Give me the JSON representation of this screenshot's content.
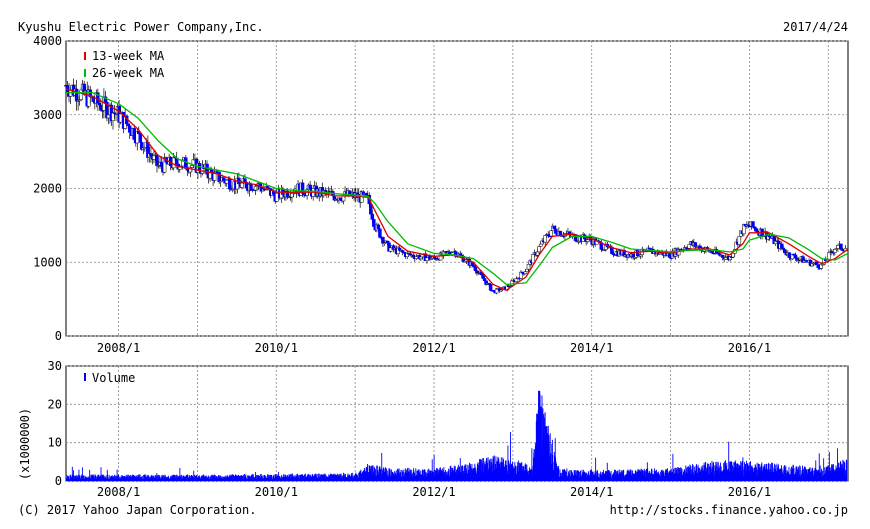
{
  "header": {
    "company": "Kyushu Electric Power Company,Inc.",
    "date": "2017/4/24"
  },
  "footer": {
    "copyright": "(C) 2017 Yahoo Japan Corporation.",
    "url": "http://stocks.finance.yahoo.co.jp"
  },
  "colors": {
    "candle": "#0000ff",
    "ma13": "#dd0000",
    "ma26": "#00bb00",
    "volume": "#0000ff",
    "grid": "#888888"
  },
  "chart_data": [
    {
      "type": "candlestick",
      "title": "Kyushu Electric Power Company,Inc.",
      "x_range": [
        "2007/5",
        "2017/4"
      ],
      "ylim": [
        0,
        4000
      ],
      "y_ticks": [
        "0",
        "1000",
        "2000",
        "3000",
        "4000"
      ],
      "x_ticks": [
        "2008/1",
        "2010/1",
        "2012/1",
        "2014/1",
        "2016/1"
      ],
      "grid": true,
      "legend": {
        "placement": "top-left",
        "entries": [
          "13-week MA",
          "26-week MA"
        ]
      },
      "price_trend": {
        "x": [
          "2007/5",
          "2007/9",
          "2008/1",
          "2008/4",
          "2008/7",
          "2008/10",
          "2009/1",
          "2009/4",
          "2009/7",
          "2009/10",
          "2010/1",
          "2010/4",
          "2010/7",
          "2010/10",
          "2011/1",
          "2011/3",
          "2011/4",
          "2011/6",
          "2011/9",
          "2012/1",
          "2012/4",
          "2012/7",
          "2012/10",
          "2012/12",
          "2013/3",
          "2013/5",
          "2013/7",
          "2013/10",
          "2014/1",
          "2014/4",
          "2014/7",
          "2014/10",
          "2015/1",
          "2015/4",
          "2015/7",
          "2015/10",
          "2015/12",
          "2016/1",
          "2016/4",
          "2016/7",
          "2016/10",
          "2016/12",
          "2017/2",
          "2017/4"
        ],
        "close": [
          3400,
          3200,
          3000,
          2700,
          2300,
          2350,
          2300,
          2150,
          2050,
          2050,
          1900,
          2000,
          1950,
          1900,
          1900,
          1850,
          1500,
          1200,
          1100,
          1050,
          1150,
          950,
          600,
          650,
          900,
          1200,
          1450,
          1350,
          1300,
          1150,
          1100,
          1150,
          1100,
          1250,
          1150,
          1050,
          1450,
          1500,
          1350,
          1100,
          1000,
          950,
          1200,
          1200
        ]
      },
      "series": [
        {
          "name": "13-week MA",
          "y": [
            3350,
            3250,
            3050,
            2800,
            2450,
            2300,
            2250,
            2200,
            2100,
            2050,
            1950,
            1950,
            1950,
            1900,
            1900,
            1880,
            1700,
            1350,
            1150,
            1080,
            1100,
            1000,
            700,
            620,
            800,
            1100,
            1350,
            1380,
            1320,
            1200,
            1130,
            1150,
            1120,
            1180,
            1180,
            1100,
            1250,
            1400,
            1400,
            1250,
            1080,
            980,
            1050,
            1180
          ]
        },
        {
          "name": "26-week MA",
          "y": [
            3300,
            3300,
            3150,
            2950,
            2650,
            2400,
            2300,
            2250,
            2200,
            2100,
            2000,
            1970,
            1960,
            1930,
            1910,
            1890,
            1800,
            1550,
            1250,
            1120,
            1100,
            1050,
            850,
            700,
            720,
            950,
            1200,
            1350,
            1350,
            1270,
            1180,
            1160,
            1140,
            1160,
            1170,
            1140,
            1180,
            1300,
            1380,
            1330,
            1170,
            1050,
            1030,
            1120
          ]
        }
      ]
    },
    {
      "type": "bar",
      "title": "",
      "legend": {
        "placement": "top-left",
        "entries": [
          "Volume"
        ]
      },
      "ylabel": "(x1000000)",
      "ylim": [
        0,
        30
      ],
      "y_ticks": [
        "0",
        "10",
        "20",
        "30"
      ],
      "x_ticks": [
        "2008/1",
        "2010/1",
        "2012/1",
        "2014/1",
        "2016/1"
      ],
      "grid": true,
      "volume_trend": {
        "x": [
          "2007/5",
          "2009/1",
          "2011/1",
          "2011/3",
          "2011/6",
          "2012/1",
          "2012/6",
          "2012/10",
          "2013/1",
          "2013/4",
          "2013/5",
          "2013/8",
          "2014/1",
          "2015/1",
          "2015/9",
          "2016/6",
          "2016/12",
          "2017/3"
        ],
        "y": [
          1.5,
          1.5,
          1.8,
          4,
          3,
          3,
          4,
          6,
          5,
          4,
          23,
          3,
          2.5,
          3,
          5,
          4,
          3,
          5
        ]
      }
    }
  ]
}
